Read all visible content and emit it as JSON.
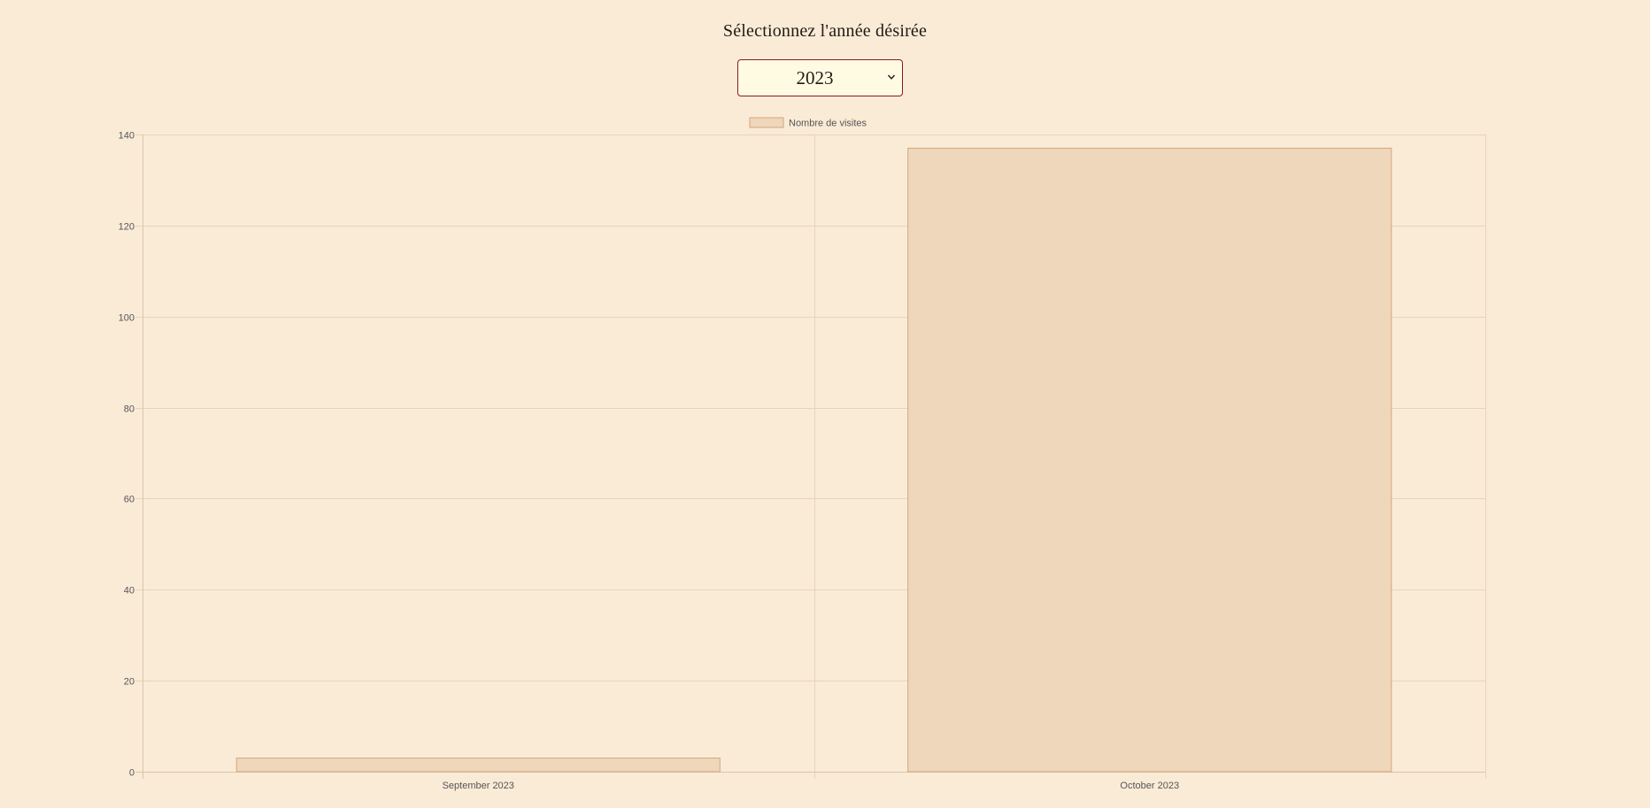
{
  "header": {
    "title": "Sélectionnez l'année désirée"
  },
  "year_select": {
    "selected": "2023",
    "options": [
      "2023"
    ]
  },
  "colors": {
    "background": "#faebd7",
    "bar_fill": "#eed7ba",
    "bar_border": "#d4a67a",
    "select_border": "#8b1a1a",
    "select_background": "#fffbe3",
    "grid": "#e6d4bd",
    "axis_text": "#555555"
  },
  "chart_data": {
    "type": "bar",
    "categories": [
      "September 2023",
      "October 2023"
    ],
    "series": [
      {
        "name": "Nombre de visites",
        "values": [
          3,
          137
        ]
      }
    ],
    "ylim": [
      0,
      140
    ],
    "yticks": [
      0,
      20,
      40,
      60,
      80,
      100,
      120,
      140
    ],
    "grid": true,
    "legend": "top-center"
  }
}
